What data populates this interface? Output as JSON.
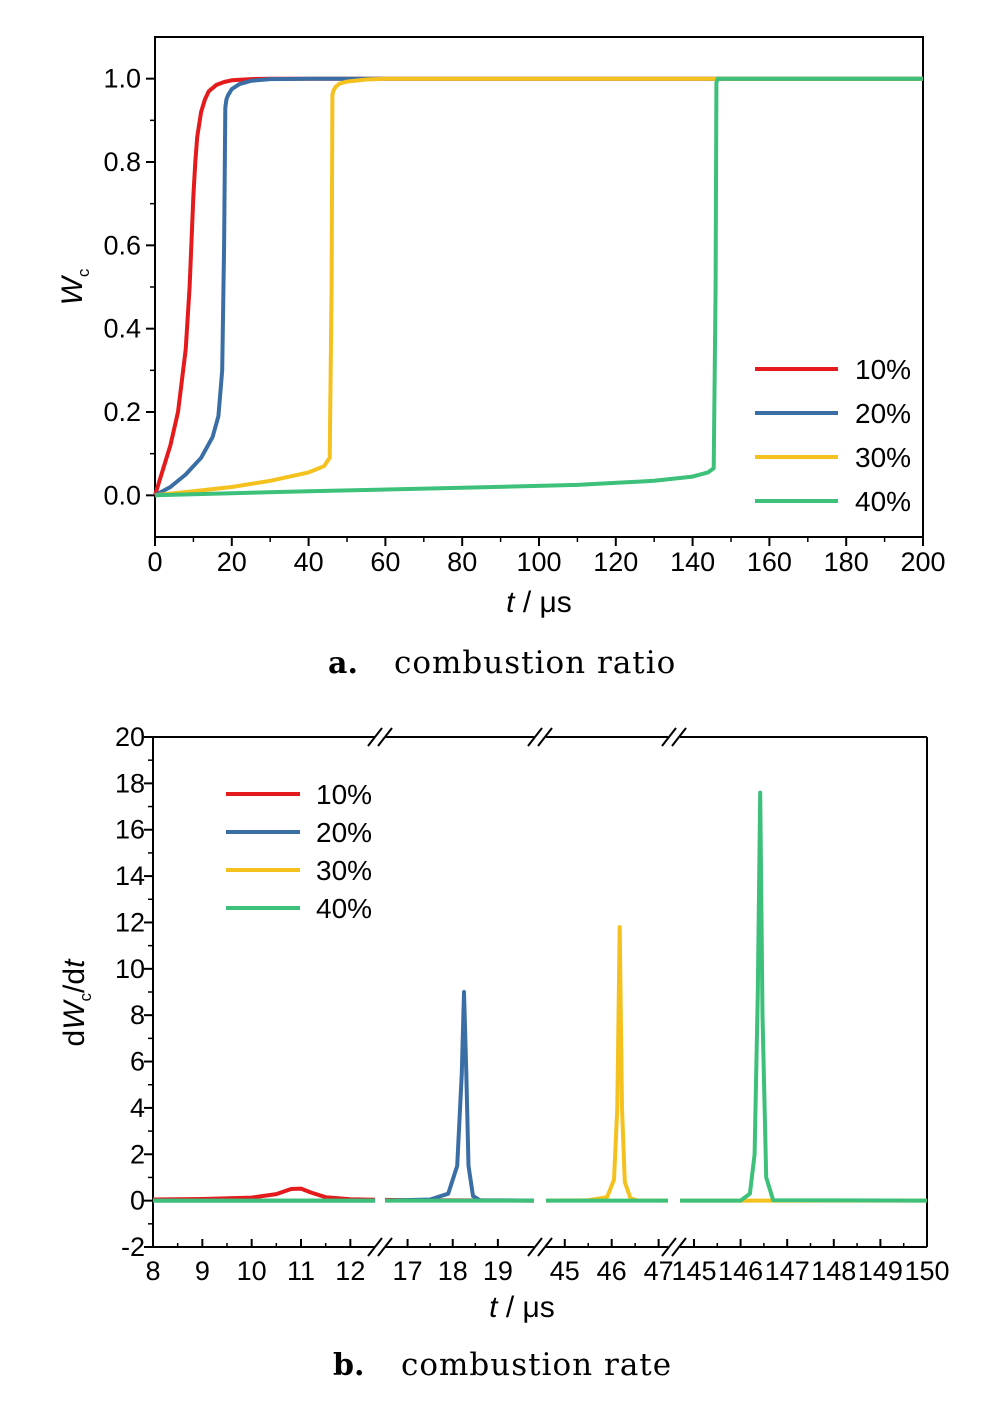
{
  "chart_data": [
    {
      "type": "line",
      "caption_letter": "a.",
      "caption_text": "combustion ratio",
      "xlabel_italic": "t",
      "xlabel_rest": " / μs",
      "ylabel_main": "W",
      "ylabel_sub": "c",
      "xlim": [
        0,
        200
      ],
      "ylim": [
        -0.1,
        1.1
      ],
      "xticks": [
        0,
        20,
        40,
        60,
        80,
        100,
        120,
        140,
        160,
        180,
        200
      ],
      "yticks": [
        0.0,
        0.2,
        0.4,
        0.6,
        0.8,
        1.0
      ],
      "ytick_labels": [
        "0.0",
        "0.2",
        "0.4",
        "0.6",
        "0.8",
        "1.0"
      ],
      "legend_position": "lower-right",
      "series": [
        {
          "name": "10%",
          "color": "#e41a1c",
          "x": [
            0,
            2,
            4,
            6,
            8,
            9,
            10,
            10.5,
            11,
            12,
            13,
            14,
            16,
            18,
            20,
            25,
            30,
            40,
            200
          ],
          "y": [
            0.0,
            0.06,
            0.12,
            0.2,
            0.35,
            0.5,
            0.72,
            0.8,
            0.86,
            0.92,
            0.95,
            0.97,
            0.985,
            0.992,
            0.996,
            0.999,
            1.0,
            1.0,
            1.0
          ]
        },
        {
          "name": "20%",
          "color": "#3a6ea5",
          "x": [
            0,
            4,
            8,
            12,
            15,
            16.5,
            17.5,
            18,
            18.3,
            18.6,
            19,
            20,
            22,
            25,
            30,
            40,
            200
          ],
          "y": [
            0.0,
            0.02,
            0.05,
            0.09,
            0.14,
            0.19,
            0.3,
            0.6,
            0.93,
            0.95,
            0.96,
            0.975,
            0.987,
            0.995,
            0.999,
            1.0,
            1.0
          ]
        },
        {
          "name": "30%",
          "color": "#f4c11f",
          "x": [
            0,
            10,
            20,
            30,
            40,
            44,
            45.5,
            46,
            46.2,
            46.4,
            47,
            48,
            50,
            55,
            60,
            200
          ],
          "y": [
            0.0,
            0.01,
            0.02,
            0.035,
            0.055,
            0.07,
            0.09,
            0.5,
            0.96,
            0.97,
            0.98,
            0.988,
            0.993,
            0.998,
            1.0,
            1.0
          ]
        },
        {
          "name": "40%",
          "color": "#3cc07a",
          "x": [
            0,
            40,
            80,
            110,
            130,
            140,
            144,
            145.5,
            146,
            146.2,
            146.5,
            150,
            200
          ],
          "y": [
            0.0,
            0.01,
            0.018,
            0.025,
            0.035,
            0.045,
            0.055,
            0.065,
            0.5,
            0.99,
            1.0,
            1.0,
            1.0
          ]
        }
      ]
    },
    {
      "type": "line",
      "caption_letter": "b.",
      "caption_text": "combustion rate",
      "xlabel_italic": "t",
      "xlabel_rest": " / μs",
      "ylabel_pre": "dW",
      "ylabel_sub": "c",
      "ylabel_post": "/dt",
      "ylim": [
        -2,
        20
      ],
      "yticks": [
        -2,
        0,
        2,
        4,
        6,
        8,
        10,
        12,
        14,
        16,
        18,
        20
      ],
      "broken_axis": true,
      "x_segments": [
        {
          "range": [
            8,
            12.5
          ],
          "ticks": [
            8,
            9,
            10,
            11,
            12
          ]
        },
        {
          "range": [
            16.5,
            19.8
          ],
          "ticks": [
            17,
            18,
            19
          ]
        },
        {
          "range": [
            44.6,
            47.2
          ],
          "ticks": [
            45,
            46,
            47
          ]
        },
        {
          "range": [
            144.7,
            150
          ],
          "ticks": [
            145,
            146,
            147,
            148,
            149,
            150
          ]
        }
      ],
      "legend_position": "upper-left",
      "series": [
        {
          "name": "10%",
          "color": "#e41a1c",
          "x": [
            8,
            9,
            10,
            10.5,
            10.8,
            11,
            11.2,
            11.5,
            12,
            12.5,
            16.5,
            17,
            19.8
          ],
          "y": [
            0.05,
            0.07,
            0.13,
            0.28,
            0.5,
            0.52,
            0.35,
            0.15,
            0.06,
            0.04,
            0.03,
            0.02,
            0.0
          ]
        },
        {
          "name": "20%",
          "color": "#3a6ea5",
          "x": [
            8,
            12.5,
            16.5,
            17.5,
            17.9,
            18.1,
            18.2,
            18.25,
            18.3,
            18.35,
            18.45,
            18.6,
            19.8
          ],
          "y": [
            0.0,
            0.0,
            0.0,
            0.05,
            0.3,
            1.5,
            5.5,
            9.0,
            5.5,
            1.5,
            0.2,
            0.02,
            0.0
          ]
        },
        {
          "name": "30%",
          "color": "#f4c11f",
          "x": [
            44.6,
            45.5,
            45.9,
            46.05,
            46.12,
            46.17,
            46.22,
            46.28,
            46.4,
            46.55,
            47.2,
            144.7,
            150
          ],
          "y": [
            0.0,
            0.02,
            0.15,
            0.9,
            4.0,
            11.8,
            4.0,
            0.8,
            0.1,
            0.01,
            0.0,
            0.0,
            0.0
          ]
        },
        {
          "name": "40%",
          "color": "#3cc07a",
          "x": [
            8,
            12.5,
            16.5,
            19.8,
            44.6,
            47.2,
            144.7,
            146.0,
            146.2,
            146.3,
            146.37,
            146.42,
            146.47,
            146.55,
            146.7,
            150
          ],
          "y": [
            0.0,
            0.0,
            0.0,
            0.0,
            0.0,
            0.0,
            0.0,
            0.0,
            0.3,
            2.0,
            9.0,
            17.6,
            8.0,
            1.0,
            0.02,
            0.0
          ]
        }
      ]
    }
  ]
}
